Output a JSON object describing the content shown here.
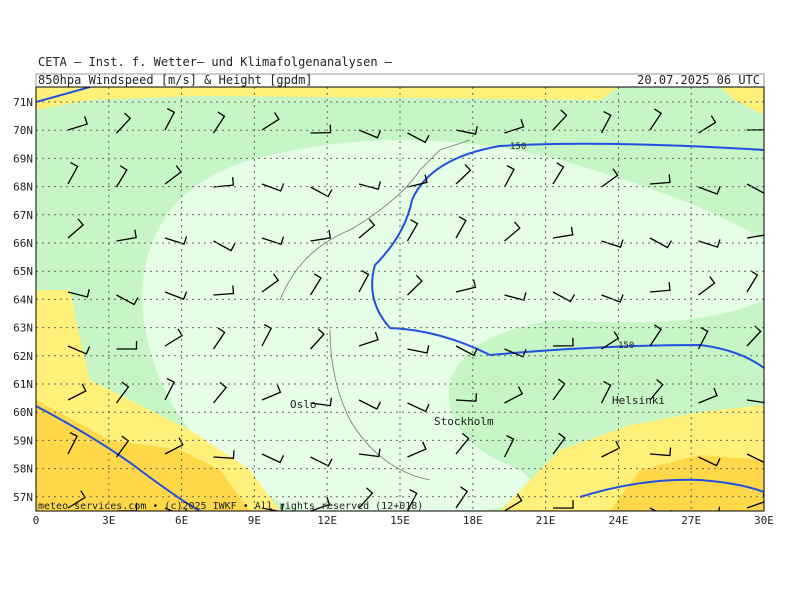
{
  "header": {
    "line1": "CETA – Inst. f. Wetter– und Klimafolgenanalysen –",
    "title": "850hpa_Windspeed_[m/s]_&_Height_[gpdm]",
    "date": "20.07.2025 06 UTC"
  },
  "map": {
    "lat_labels": [
      "71N",
      "70N",
      "69N",
      "68N",
      "67N",
      "66N",
      "65N",
      "64N",
      "63N",
      "62N",
      "61N",
      "60N",
      "59N",
      "58N",
      "57N"
    ],
    "lon_labels": [
      "0",
      "3E",
      "6E",
      "9E",
      "12E",
      "15E",
      "18E",
      "21E",
      "24E",
      "27E",
      "30E"
    ],
    "cities": [
      "Oslo",
      "Stockholm",
      "Helsinki"
    ],
    "contour_labels": [
      "150",
      "150"
    ],
    "credit": "meteo-services.com • (c)2025 IWKF • All rights reserved (12+018)"
  }
}
